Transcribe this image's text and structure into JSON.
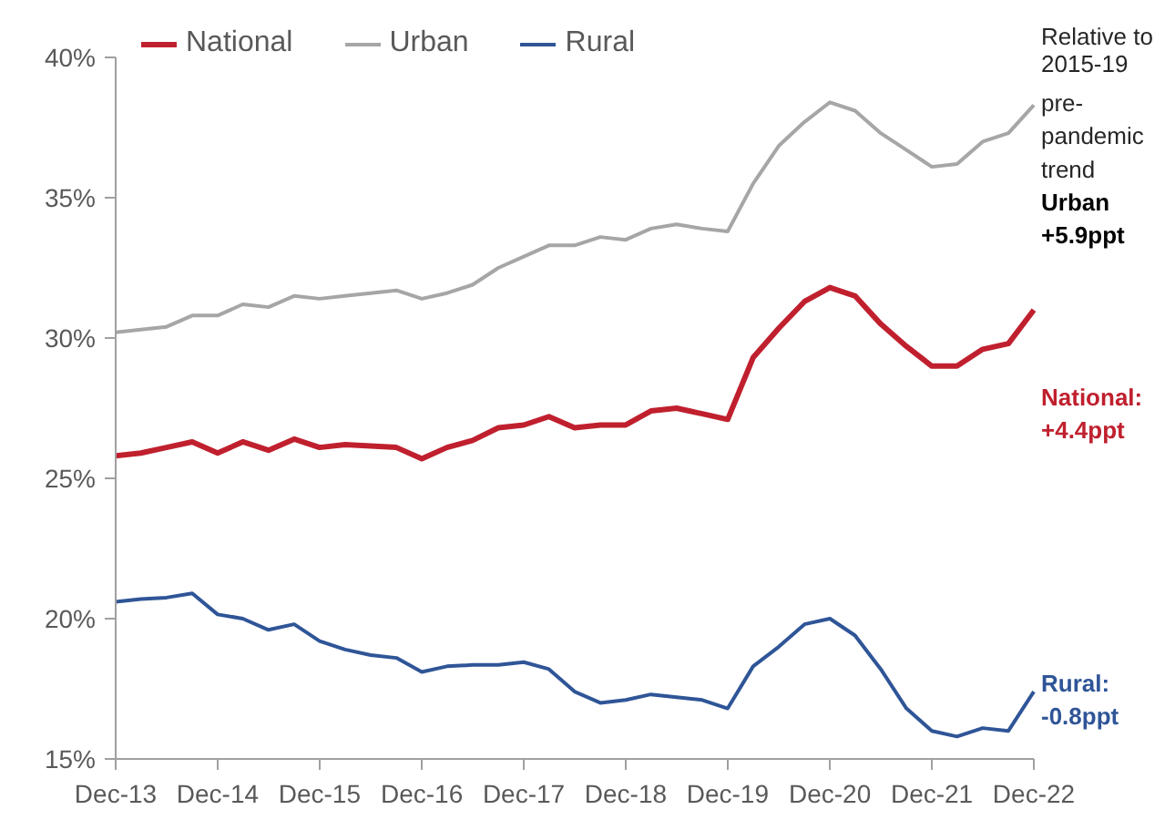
{
  "chart_data": {
    "type": "line",
    "x": [
      "2013-12",
      "2014-03",
      "2014-06",
      "2014-09",
      "2014-12",
      "2015-03",
      "2015-06",
      "2015-09",
      "2015-12",
      "2016-03",
      "2016-06",
      "2016-09",
      "2016-12",
      "2017-03",
      "2017-06",
      "2017-09",
      "2017-12",
      "2018-03",
      "2018-06",
      "2018-09",
      "2018-12",
      "2019-03",
      "2019-06",
      "2019-09",
      "2019-12",
      "2020-03",
      "2020-06",
      "2020-09",
      "2020-12",
      "2021-03",
      "2021-06",
      "2021-09",
      "2021-12",
      "2022-03",
      "2022-06",
      "2022-09",
      "2022-12"
    ],
    "series": [
      {
        "name": "National",
        "color": "#c0202e",
        "values": [
          25.8,
          25.9,
          26.1,
          26.3,
          25.9,
          26.3,
          26.0,
          26.4,
          26.1,
          26.2,
          26.15,
          26.1,
          25.7,
          26.1,
          26.35,
          26.8,
          26.9,
          27.2,
          26.8,
          26.9,
          26.9,
          27.4,
          27.5,
          27.3,
          27.1,
          29.3,
          30.35,
          31.3,
          31.8,
          31.5,
          30.5,
          29.7,
          29.0,
          29.0,
          29.6,
          29.8,
          31.0
        ]
      },
      {
        "name": "Urban",
        "color": "#a6a6a6",
        "values": [
          30.2,
          30.3,
          30.4,
          30.8,
          30.8,
          31.2,
          31.1,
          31.5,
          31.4,
          31.5,
          31.6,
          31.7,
          31.4,
          31.6,
          31.9,
          32.5,
          32.9,
          33.3,
          33.3,
          33.6,
          33.5,
          33.9,
          34.05,
          33.9,
          33.8,
          35.5,
          36.85,
          37.7,
          38.4,
          38.1,
          37.3,
          36.7,
          36.1,
          36.2,
          37.0,
          37.3,
          38.3
        ]
      },
      {
        "name": "Rural",
        "color": "#2f5597",
        "values": [
          20.6,
          20.7,
          20.75,
          20.9,
          20.15,
          20.0,
          19.6,
          19.8,
          19.2,
          18.9,
          18.7,
          18.6,
          18.1,
          18.3,
          18.35,
          18.35,
          18.45,
          18.2,
          17.4,
          17.0,
          17.1,
          17.3,
          17.2,
          17.1,
          16.8,
          18.3,
          19.0,
          19.8,
          20.0,
          19.4,
          18.2,
          16.8,
          16.0,
          15.8,
          16.1,
          16.0,
          17.4
        ]
      }
    ],
    "xlim": [
      "2013-12",
      "2022-12"
    ],
    "xticks": [
      {
        "value": "2013-12",
        "label": "Dec-13"
      },
      {
        "value": "2014-12",
        "label": "Dec-14"
      },
      {
        "value": "2015-12",
        "label": "Dec-15"
      },
      {
        "value": "2016-12",
        "label": "Dec-16"
      },
      {
        "value": "2017-12",
        "label": "Dec-17"
      },
      {
        "value": "2018-12",
        "label": "Dec-18"
      },
      {
        "value": "2019-12",
        "label": "Dec-19"
      },
      {
        "value": "2020-12",
        "label": "Dec-20"
      },
      {
        "value": "2021-12",
        "label": "Dec-21"
      },
      {
        "value": "2022-12",
        "label": "Dec-22"
      }
    ],
    "ylim": [
      15,
      40
    ],
    "yticks": [
      {
        "value": 15,
        "label": "15%"
      },
      {
        "value": 20,
        "label": "20%"
      },
      {
        "value": 25,
        "label": "25%"
      },
      {
        "value": 30,
        "label": "30%"
      },
      {
        "value": 35,
        "label": "35%"
      },
      {
        "value": 40,
        "label": "40%"
      }
    ],
    "annotations": [
      "Relative to 2015-19 pre-pandemic trend",
      "Urban +5.9ppt",
      "National: +4.4ppt",
      "Rural: -0.8ppt"
    ],
    "legend": "top left",
    "grid": false,
    "marker": "none",
    "line_style": "solid"
  }
}
